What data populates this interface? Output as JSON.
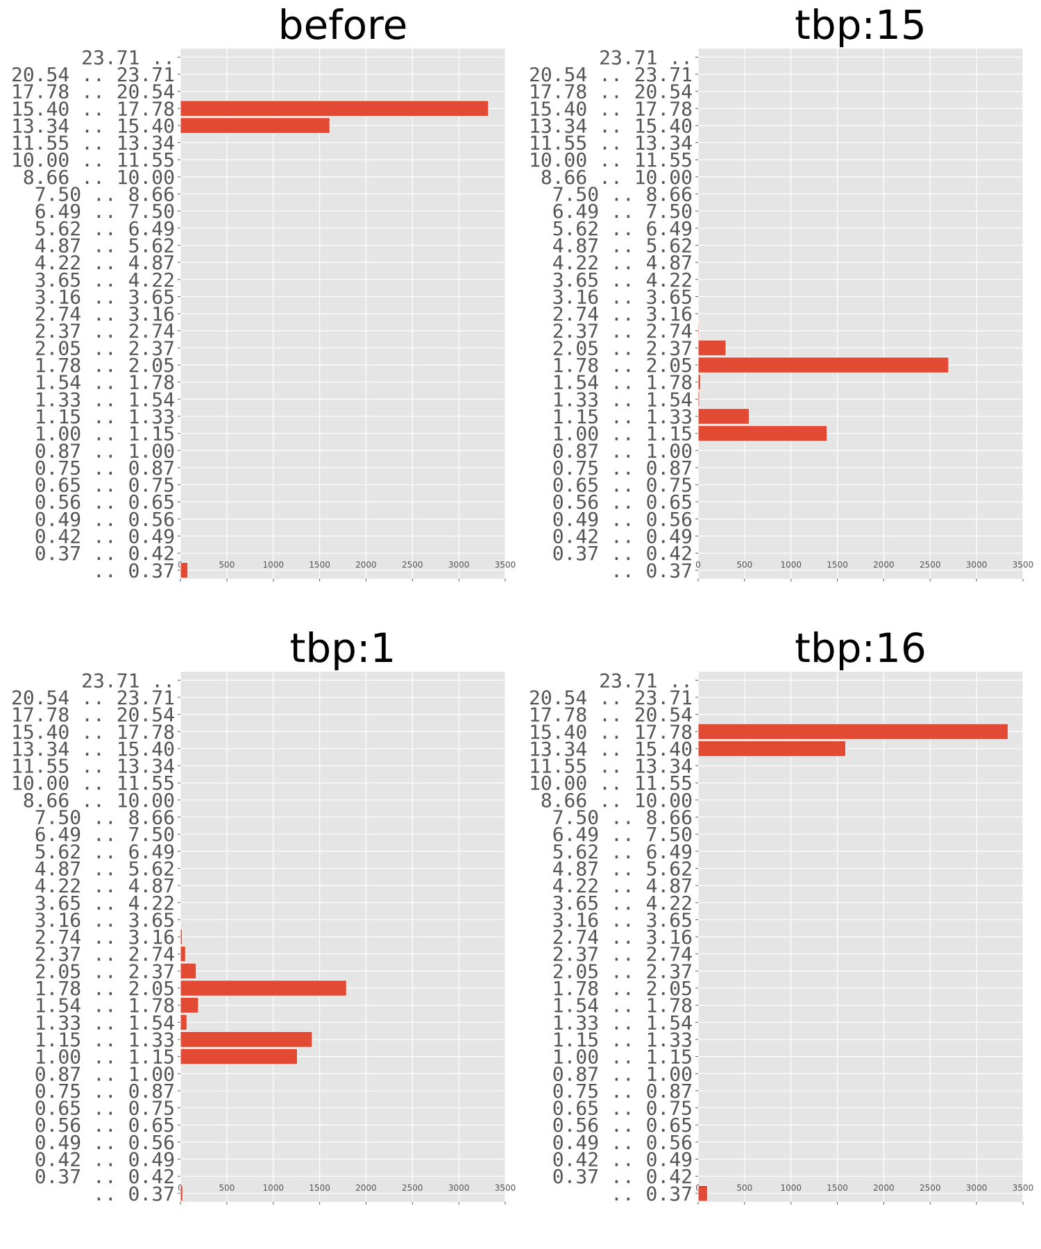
{
  "chart_data": [
    {
      "type": "bar",
      "orientation": "horizontal",
      "title": "before",
      "categories": [
        "23.71 ..",
        "20.54 .. 23.71",
        "17.78 .. 20.54",
        "15.40 .. 17.78",
        "13.34 .. 15.40",
        "11.55 .. 13.34",
        "10.00 .. 11.55",
        "8.66 .. 10.00",
        "7.50 .. 8.66",
        "6.49 .. 7.50",
        "5.62 .. 6.49",
        "4.87 .. 5.62",
        "4.22 .. 4.87",
        "3.65 .. 4.22",
        "3.16 .. 3.65",
        "2.74 .. 3.16",
        "2.37 .. 2.74",
        "2.05 .. 2.37",
        "1.78 .. 2.05",
        "1.54 .. 1.78",
        "1.33 .. 1.54",
        "1.15 .. 1.33",
        "1.00 .. 1.15",
        "0.87 .. 1.00",
        "0.75 .. 0.87",
        "0.65 .. 0.75",
        "0.56 .. 0.65",
        "0.49 .. 0.56",
        "0.42 .. 0.49",
        "0.37 .. 0.42",
        ".. 0.37"
      ],
      "values": [
        0,
        0,
        0,
        3320,
        1610,
        0,
        0,
        0,
        0,
        0,
        0,
        0,
        0,
        0,
        0,
        0,
        0,
        0,
        0,
        0,
        0,
        0,
        0,
        0,
        0,
        0,
        0,
        0,
        0,
        0,
        80
      ],
      "xlim": [
        0,
        3500
      ],
      "xticks": [
        0,
        500,
        1000,
        1500,
        2000,
        2500,
        3000,
        3500
      ],
      "grid": true
    },
    {
      "type": "bar",
      "orientation": "horizontal",
      "title": "tbp:15",
      "categories": [
        "23.71 ..",
        "20.54 .. 23.71",
        "17.78 .. 20.54",
        "15.40 .. 17.78",
        "13.34 .. 15.40",
        "11.55 .. 13.34",
        "10.00 .. 11.55",
        "8.66 .. 10.00",
        "7.50 .. 8.66",
        "6.49 .. 7.50",
        "5.62 .. 6.49",
        "4.87 .. 5.62",
        "4.22 .. 4.87",
        "3.65 .. 4.22",
        "3.16 .. 3.65",
        "2.74 .. 3.16",
        "2.37 .. 2.74",
        "2.05 .. 2.37",
        "1.78 .. 2.05",
        "1.54 .. 1.78",
        "1.33 .. 1.54",
        "1.15 .. 1.33",
        "1.00 .. 1.15",
        "0.87 .. 1.00",
        "0.75 .. 0.87",
        "0.65 .. 0.75",
        "0.56 .. 0.65",
        "0.49 .. 0.56",
        "0.42 .. 0.49",
        "0.37 .. 0.42",
        ".. 0.37"
      ],
      "values": [
        0,
        0,
        0,
        0,
        0,
        0,
        0,
        0,
        0,
        0,
        0,
        0,
        0,
        0,
        0,
        0,
        10,
        300,
        2700,
        25,
        15,
        550,
        1390,
        0,
        0,
        0,
        0,
        0,
        0,
        0,
        0
      ],
      "xlim": [
        0,
        3500
      ],
      "xticks": [
        0,
        500,
        1000,
        1500,
        2000,
        2500,
        3000,
        3500
      ],
      "grid": true
    },
    {
      "type": "bar",
      "orientation": "horizontal",
      "title": "tbp:1",
      "categories": [
        "23.71 ..",
        "20.54 .. 23.71",
        "17.78 .. 20.54",
        "15.40 .. 17.78",
        "13.34 .. 15.40",
        "11.55 .. 13.34",
        "10.00 .. 11.55",
        "8.66 .. 10.00",
        "7.50 .. 8.66",
        "6.49 .. 7.50",
        "5.62 .. 6.49",
        "4.87 .. 5.62",
        "4.22 .. 4.87",
        "3.65 .. 4.22",
        "3.16 .. 3.65",
        "2.74 .. 3.16",
        "2.37 .. 2.74",
        "2.05 .. 2.37",
        "1.78 .. 2.05",
        "1.54 .. 1.78",
        "1.33 .. 1.54",
        "1.15 .. 1.33",
        "1.00 .. 1.15",
        "0.87 .. 1.00",
        "0.75 .. 0.87",
        "0.65 .. 0.75",
        "0.56 .. 0.65",
        "0.49 .. 0.56",
        "0.42 .. 0.49",
        "0.37 .. 0.42",
        ".. 0.37"
      ],
      "values": [
        0,
        0,
        0,
        0,
        0,
        0,
        0,
        0,
        0,
        0,
        0,
        0,
        0,
        0,
        0,
        20,
        55,
        170,
        1790,
        195,
        70,
        1420,
        1260,
        0,
        0,
        0,
        0,
        0,
        0,
        0,
        25
      ],
      "xlim": [
        0,
        3500
      ],
      "xticks": [
        0,
        500,
        1000,
        1500,
        2000,
        2500,
        3000,
        3500
      ],
      "grid": true
    },
    {
      "type": "bar",
      "orientation": "horizontal",
      "title": "tbp:16",
      "categories": [
        "23.71 ..",
        "20.54 .. 23.71",
        "17.78 .. 20.54",
        "15.40 .. 17.78",
        "13.34 .. 15.40",
        "11.55 .. 13.34",
        "10.00 .. 11.55",
        "8.66 .. 10.00",
        "7.50 .. 8.66",
        "6.49 .. 7.50",
        "5.62 .. 6.49",
        "4.87 .. 5.62",
        "4.22 .. 4.87",
        "3.65 .. 4.22",
        "3.16 .. 3.65",
        "2.74 .. 3.16",
        "2.37 .. 2.74",
        "2.05 .. 2.37",
        "1.78 .. 2.05",
        "1.54 .. 1.78",
        "1.33 .. 1.54",
        "1.15 .. 1.33",
        "1.00 .. 1.15",
        "0.87 .. 1.00",
        "0.75 .. 0.87",
        "0.65 .. 0.75",
        "0.56 .. 0.65",
        "0.49 .. 0.56",
        "0.42 .. 0.49",
        "0.37 .. 0.42",
        ".. 0.37"
      ],
      "values": [
        0,
        0,
        0,
        3340,
        1590,
        0,
        0,
        0,
        0,
        0,
        0,
        0,
        0,
        0,
        0,
        0,
        0,
        0,
        0,
        0,
        0,
        0,
        0,
        0,
        0,
        0,
        0,
        0,
        0,
        0,
        100
      ],
      "xlim": [
        0,
        3500
      ],
      "xticks": [
        0,
        500,
        1000,
        1500,
        2000,
        2500,
        3000,
        3500
      ],
      "grid": true
    }
  ],
  "colors": {
    "bar": "#e24a33",
    "plot_background": "#e5e5e5",
    "grid": "#ffffff",
    "tick_text": "#555555"
  }
}
